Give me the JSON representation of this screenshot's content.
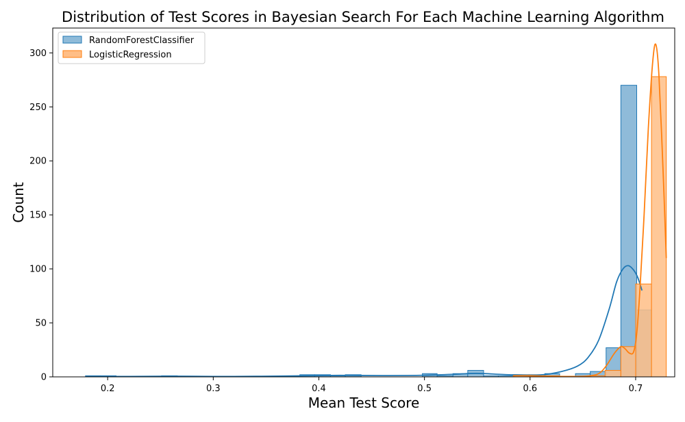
{
  "chart_data": {
    "type": "histogram",
    "title": "Distribution of Test Scores in Bayesian Search For Each Machine Learning Algorithm",
    "xlabel": "Mean Test Score",
    "ylabel": "Count",
    "xlim": [
      0.148,
      0.737
    ],
    "ylim": [
      0,
      323
    ],
    "xticks": [
      0.2,
      0.3,
      0.4,
      0.5,
      0.6,
      0.7
    ],
    "xtick_labels": [
      "0.2",
      "0.3",
      "0.4",
      "0.5",
      "0.6",
      "0.7"
    ],
    "yticks": [
      0,
      50,
      100,
      150,
      200,
      250,
      300
    ],
    "ytick_labels": [
      "0",
      "50",
      "100",
      "150",
      "200",
      "250",
      "300"
    ],
    "grid": false,
    "legend_position": "top-left",
    "series": [
      {
        "name": "RandomForestClassifier",
        "color": "#1f77b4",
        "fill": "#8fbbd9",
        "bins": [
          [
            0.179,
            0.193,
            1
          ],
          [
            0.193,
            0.208,
            1
          ],
          [
            0.208,
            0.222,
            0
          ],
          [
            0.222,
            0.237,
            0
          ],
          [
            0.237,
            0.251,
            0
          ],
          [
            0.251,
            0.266,
            1
          ],
          [
            0.266,
            0.28,
            0
          ],
          [
            0.28,
            0.295,
            0
          ],
          [
            0.295,
            0.309,
            0
          ],
          [
            0.309,
            0.324,
            0
          ],
          [
            0.324,
            0.338,
            0
          ],
          [
            0.338,
            0.353,
            0
          ],
          [
            0.353,
            0.367,
            0
          ],
          [
            0.367,
            0.382,
            0
          ],
          [
            0.382,
            0.396,
            2
          ],
          [
            0.396,
            0.411,
            2
          ],
          [
            0.411,
            0.425,
            1
          ],
          [
            0.425,
            0.44,
            2
          ],
          [
            0.44,
            0.454,
            0
          ],
          [
            0.454,
            0.469,
            0
          ],
          [
            0.469,
            0.483,
            0
          ],
          [
            0.483,
            0.498,
            0
          ],
          [
            0.498,
            0.512,
            3
          ],
          [
            0.512,
            0.527,
            1
          ],
          [
            0.527,
            0.541,
            3
          ],
          [
            0.541,
            0.556,
            6
          ],
          [
            0.556,
            0.57,
            1
          ],
          [
            0.57,
            0.585,
            1
          ],
          [
            0.585,
            0.599,
            0
          ],
          [
            0.599,
            0.614,
            1
          ],
          [
            0.614,
            0.628,
            3
          ],
          [
            0.628,
            0.643,
            0
          ],
          [
            0.643,
            0.657,
            3
          ],
          [
            0.657,
            0.672,
            5
          ],
          [
            0.672,
            0.686,
            27
          ],
          [
            0.686,
            0.701,
            270
          ],
          [
            0.701,
            0.715,
            62
          ]
        ],
        "kde": {
          "x": [
            0.179,
            0.22,
            0.26,
            0.3,
            0.34,
            0.38,
            0.42,
            0.46,
            0.5,
            0.53,
            0.55,
            0.58,
            0.61,
            0.63,
            0.645,
            0.655,
            0.665,
            0.675,
            0.682,
            0.688,
            0.693,
            0.698,
            0.702,
            0.706
          ],
          "y": [
            0.4,
            0.4,
            0.6,
            0.4,
            0.5,
            0.9,
            1.4,
            1.2,
            1.5,
            2.5,
            3.2,
            2,
            1.8,
            5,
            10,
            18,
            34,
            63,
            88,
            100,
            103,
            99,
            92,
            80
          ]
        }
      },
      {
        "name": "LogisticRegression",
        "color": "#ff7f0e",
        "fill": "#ffbe86",
        "bins": [
          [
            0.584,
            0.599,
            2
          ],
          [
            0.599,
            0.613,
            2
          ],
          [
            0.613,
            0.628,
            1
          ],
          [
            0.628,
            0.642,
            0
          ],
          [
            0.642,
            0.657,
            0
          ],
          [
            0.657,
            0.671,
            1
          ],
          [
            0.671,
            0.686,
            6
          ],
          [
            0.686,
            0.7,
            28
          ],
          [
            0.7,
            0.715,
            86
          ],
          [
            0.715,
            0.729,
            278
          ]
        ],
        "kde": {
          "x": [
            0.584,
            0.6,
            0.62,
            0.64,
            0.655,
            0.665,
            0.672,
            0.68,
            0.686,
            0.69,
            0.694,
            0.698,
            0.701,
            0.704,
            0.708,
            0.712,
            0.716,
            0.719,
            0.722,
            0.726,
            0.729
          ],
          "y": [
            1,
            1,
            0.6,
            0.4,
            0.8,
            3,
            10,
            22,
            28,
            26,
            22,
            23,
            40,
            80,
            150,
            230,
            290,
            308,
            280,
            190,
            110
          ]
        }
      }
    ]
  }
}
